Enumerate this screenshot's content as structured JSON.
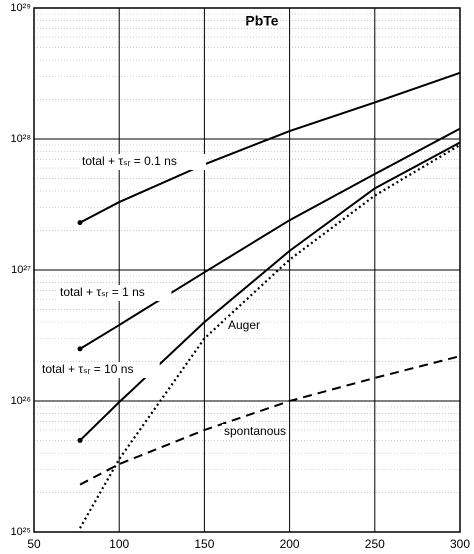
{
  "chart_data": {
    "type": "line",
    "title": "PbTe",
    "x": [
      77,
      100,
      150,
      200,
      250,
      300
    ],
    "series": [
      {
        "name": "total + τₛᵣ = 0.1 ns",
        "color": "#000000",
        "style": "solid",
        "markers": true,
        "values": [
          2.3e+27,
          3.3e+27,
          6.4e+27,
          1.15e+28,
          1.9e+28,
          3.2e+28
        ]
      },
      {
        "name": "total + τₛᵣ = 1 ns",
        "color": "#000000",
        "style": "solid",
        "markers": true,
        "values": [
          2.5e+26,
          3.8e+26,
          9.6e+26,
          2.4e+27,
          5.4e+27,
          1.2e+28
        ]
      },
      {
        "name": "total + τₛᵣ = 10 ns",
        "color": "#000000",
        "style": "solid",
        "markers": true,
        "values": [
          5e+25,
          9.8e+25,
          4e+26,
          1.4e+27,
          4.2e+27,
          9.4e+27
        ]
      },
      {
        "name": "Auger",
        "color": "#000000",
        "style": "dotted",
        "markers": false,
        "values": [
          1.07e+25,
          3.6e+25,
          3e+26,
          1.2e+27,
          3.7e+27,
          9e+27
        ]
      },
      {
        "name": "spontanous",
        "color": "#000000",
        "style": "dashed",
        "markers": false,
        "values": [
          2.3e+25,
          3.3e+25,
          6e+25,
          1e+26,
          1.5e+26,
          2.2e+26
        ]
      }
    ],
    "xlim": [
      50,
      300
    ],
    "xticks": [
      50,
      100,
      150,
      200,
      250,
      300
    ],
    "ylim": [
      1e+25,
      1e+29
    ],
    "ylog": true,
    "yticks": [
      {
        "value": 1e+25,
        "label": "10²⁵"
      },
      {
        "value": 1e+26,
        "label": "10²⁶"
      },
      {
        "value": 1e+27,
        "label": "10²⁷"
      },
      {
        "value": 1e+28,
        "label": "10²⁸"
      },
      {
        "value": 1e+29,
        "label": "10²⁹"
      }
    ],
    "grid": true
  }
}
